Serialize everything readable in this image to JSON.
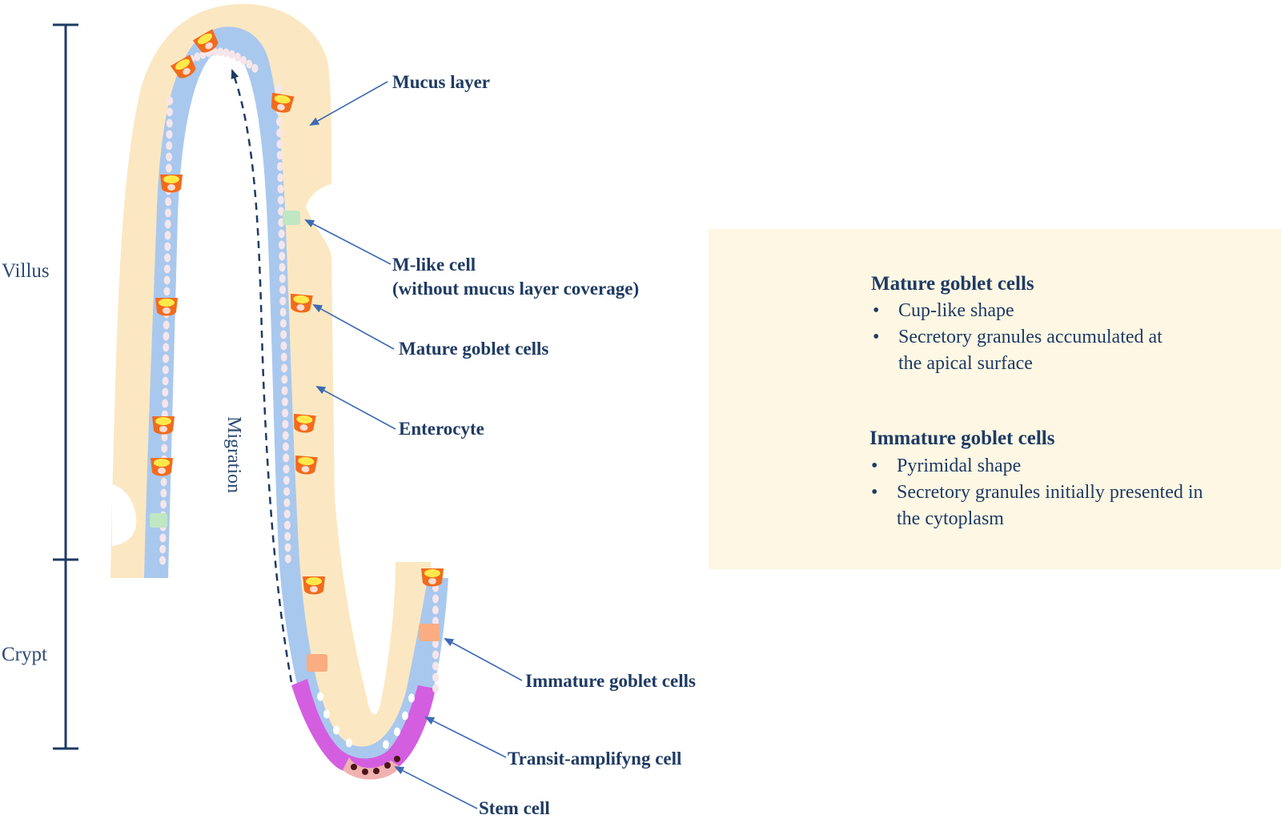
{
  "regions": {
    "villus": "Villus",
    "crypt": "Crypt"
  },
  "migration_label": "Migration",
  "callouts": {
    "mucus_layer": "Mucus layer",
    "m_like_cell_line1": "M-like cell",
    "m_like_cell_line2": "(without mucus layer coverage)",
    "mature_goblet_cells": "Mature goblet cells",
    "enterocyte": "Enterocyte",
    "immature_goblet_cells": "Immature goblet cells",
    "transit_amplifying_cell": "Transit-amplifyng cell",
    "stem_cell": "Stem cell"
  },
  "legend": {
    "mature": {
      "title": "Mature goblet cells",
      "bullet_char": "•",
      "bullets": [
        "Cup-like shape",
        "Secretory granules accumulated at",
        "the apical surface"
      ]
    },
    "immature": {
      "title": "Immature goblet cells",
      "bullet_char": "•",
      "bullets": [
        "Pyrimidal shape",
        "Secretory granules initially presented in",
        "the cytoplasm"
      ]
    }
  },
  "colors": {
    "mucus": "#fbe8c2",
    "enterocyte": "#a9c8ee",
    "enterocyte_nucleus": "#f6e6ea",
    "goblet_mature": "#f26b1d",
    "goblet_granules": "#ffe94a",
    "goblet_immature": "#f9ad80",
    "transit_amplifying": "#d45ee0",
    "stem_cell": "#f0b2b0",
    "stem_nucleus": "#4a1416",
    "m_like_cell": "#bfe7c3",
    "label": "#1f3b63",
    "arrow": "#3d6ab3"
  }
}
